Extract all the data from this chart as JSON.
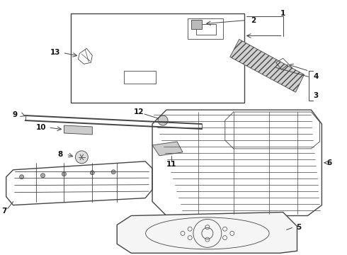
{
  "background_color": "#ffffff",
  "line_color": "#444444",
  "label_color": "#111111",
  "fig_width": 4.9,
  "fig_height": 3.6,
  "dpi": 100
}
